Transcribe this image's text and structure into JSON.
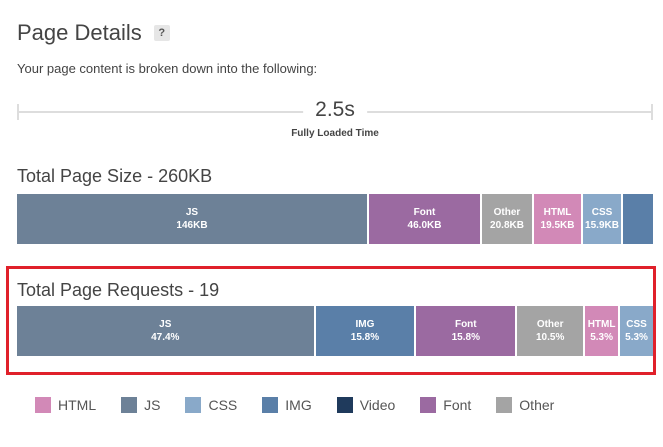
{
  "header": {
    "title": "Page Details",
    "help_label": "?",
    "subtitle": "Your page content is broken down into the following:"
  },
  "timeline": {
    "value": "2.5s",
    "label": "Fully Loaded Time"
  },
  "colors": {
    "js": "#6d8197",
    "font": "#9b6aa1",
    "other": "#a4a4a4",
    "html": "#d289b7",
    "css": "#89a9c9",
    "img": "#5a7fa8",
    "video": "#1f3a5c",
    "highlight": "#e0202a"
  },
  "size": {
    "title": "Total Page Size - 260KB",
    "segments": [
      {
        "key": "js",
        "label": "JS",
        "value": "146KB",
        "share": 0.559
      },
      {
        "key": "font",
        "label": "Font",
        "value": "46.0KB",
        "share": 0.177
      },
      {
        "key": "other",
        "label": "Other",
        "value": "20.8KB",
        "share": 0.08
      },
      {
        "key": "html",
        "label": "HTML",
        "value": "19.5KB",
        "share": 0.075
      },
      {
        "key": "css",
        "label": "CSS",
        "value": "15.9KB",
        "share": 0.061
      },
      {
        "key": "img",
        "label": "",
        "value": "",
        "share": 0.048
      }
    ]
  },
  "requests": {
    "title": "Total Page Requests - 19",
    "segments": [
      {
        "key": "js",
        "label": "JS",
        "value": "47.4%",
        "share": 0.474
      },
      {
        "key": "img",
        "label": "IMG",
        "value": "15.8%",
        "share": 0.158
      },
      {
        "key": "font",
        "label": "Font",
        "value": "15.8%",
        "share": 0.158
      },
      {
        "key": "other",
        "label": "Other",
        "value": "10.5%",
        "share": 0.105
      },
      {
        "key": "html",
        "label": "HTML",
        "value": "5.3%",
        "share": 0.053
      },
      {
        "key": "css",
        "label": "CSS",
        "value": "5.3%",
        "share": 0.053
      }
    ]
  },
  "legend": [
    {
      "key": "html",
      "label": "HTML"
    },
    {
      "key": "js",
      "label": "JS"
    },
    {
      "key": "css",
      "label": "CSS"
    },
    {
      "key": "img",
      "label": "IMG"
    },
    {
      "key": "video",
      "label": "Video"
    },
    {
      "key": "font",
      "label": "Font"
    },
    {
      "key": "other",
      "label": "Other"
    }
  ]
}
